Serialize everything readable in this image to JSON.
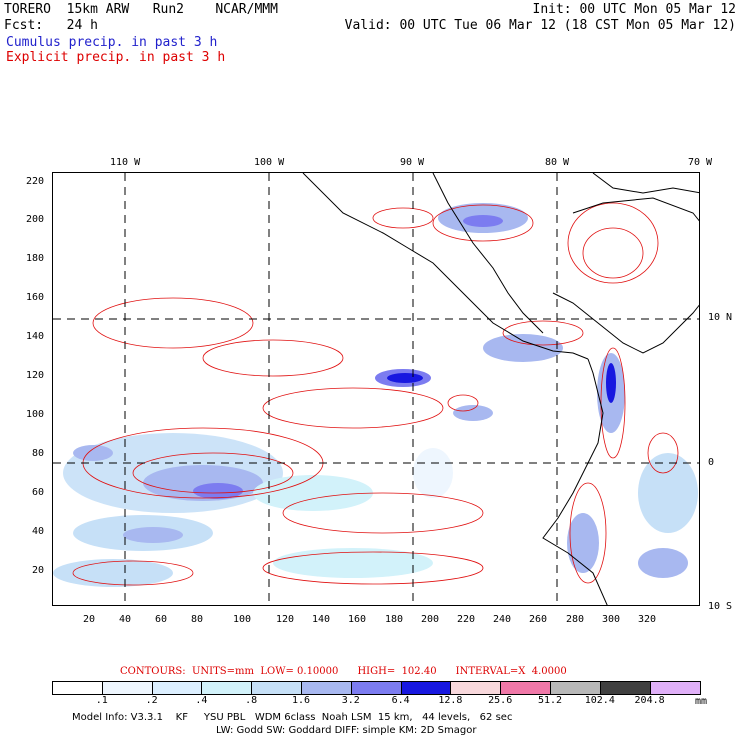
{
  "header": {
    "model": "TORERO  15km ARW   Run2    NCAR/MMM",
    "init": "Init: 00 UTC Mon 05 Mar 12",
    "fcst": "Fcst:   24 h",
    "valid": "Valid: 00 UTC Tue 06 Mar 12 (18 CST Mon 05 Mar 12)",
    "cumulus_label": "Cumulus precip. in past 3 h",
    "explicit_label": "Explicit precip. in past 3 h"
  },
  "map": {
    "top_lon_labels": [
      "110 W",
      "100 W",
      "90 W",
      "80 W",
      "70 W"
    ],
    "right_lat_labels": [
      "10 N",
      "0",
      "10 S"
    ],
    "y_ticks": [
      "220",
      "200",
      "180",
      "160",
      "140",
      "120",
      "100",
      "80",
      "60",
      "40",
      "20"
    ],
    "x_ticks": [
      "20",
      "40",
      "60",
      "80",
      "100",
      "120",
      "140",
      "160",
      "180",
      "200",
      "220",
      "240",
      "260",
      "280",
      "300",
      "320"
    ]
  },
  "contour_info": {
    "text": "CONTOURS:  UNITS=mm  LOW= 0.10000      HIGH=  102.40      INTERVAL=X  4.0000"
  },
  "colorbar": {
    "unit": "mm",
    "labels": [
      ".1",
      ".2",
      ".4",
      ".8",
      "1.6",
      "3.2",
      "6.4",
      "12.8",
      "25.6",
      "51.2",
      "102.4",
      "204.8"
    ],
    "colors": [
      "#ffffff",
      "#eef6fe",
      "#dcefff",
      "#d2f2fa",
      "#c6e0f7",
      "#a8b8f0",
      "#7c7cf0",
      "#1818e0",
      "#f8d8dc",
      "#f078a8",
      "#b8b8b8",
      "#404040",
      "#e0b0f8"
    ]
  },
  "footer": {
    "line1": "Model Info: V3.3.1    KF     YSU PBL   WDM 6class  Noah LSM  15 km,   44 levels,   62 sec",
    "line2": "LW: Godd SW: Goddard DIFF: simple KM: 2D Smagor"
  }
}
